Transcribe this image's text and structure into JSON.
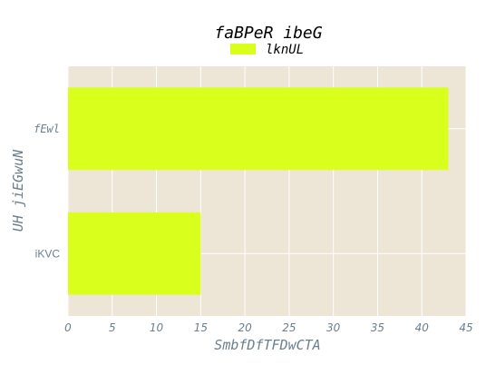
{
  "chart_data": {
    "type": "bar",
    "orientation": "horizontal",
    "title": "faBPeR  ibeG",
    "xlabel": "SmbfDfTFDwCTA",
    "ylabel": "UH jiEGwuN",
    "categories": [
      "fEwl",
      "iKVC"
    ],
    "series": [
      {
        "name": "lknUL",
        "values": [
          43,
          15
        ],
        "color": "#d9ff1c"
      }
    ],
    "xlim": [
      0,
      45
    ],
    "xticks": [
      "0",
      "5",
      "10",
      "15",
      "20",
      "25",
      "30",
      "35",
      "40",
      "45"
    ],
    "grid": true,
    "legend_position": "top-center",
    "plot_background": "#ede6d6",
    "grid_color": "#ffffff"
  }
}
